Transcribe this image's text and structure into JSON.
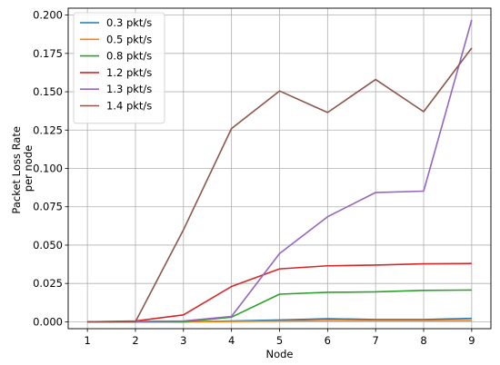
{
  "chart_data": {
    "type": "line",
    "xlabel": "Node",
    "ylabel_lines": [
      "Packet Loss Rate",
      "per node"
    ],
    "x": [
      1,
      2,
      3,
      4,
      5,
      6,
      7,
      8,
      9
    ],
    "xticks": [
      "1",
      "2",
      "3",
      "4",
      "5",
      "6",
      "7",
      "8",
      "9"
    ],
    "yticks": [
      "0.000",
      "0.025",
      "0.050",
      "0.075",
      "0.100",
      "0.125",
      "0.150",
      "0.175",
      "0.200"
    ],
    "xlim": [
      0.6,
      9.4
    ],
    "ylim": [
      -0.0045,
      0.2045
    ],
    "grid": true,
    "legend_position": "top-left",
    "series": [
      {
        "name": "0.3 pkt/s",
        "color": "#1f77b4",
        "values": [
          0,
          0,
          0,
          0.0005,
          0.0012,
          0.002,
          0.0015,
          0.0015,
          0.0022
        ]
      },
      {
        "name": "0.5 pkt/s",
        "color": "#ff7f0e",
        "values": [
          0,
          0,
          0,
          0.0002,
          0.0005,
          0.0008,
          0.0008,
          0.0008,
          0.0008
        ]
      },
      {
        "name": "0.8 pkt/s",
        "color": "#2ca02c",
        "values": [
          0,
          0,
          0,
          0.003,
          0.018,
          0.0192,
          0.0195,
          0.0205,
          0.0207
        ]
      },
      {
        "name": "1.2 pkt/s",
        "color": "#d62728",
        "values": [
          0,
          0.0005,
          0.0045,
          0.023,
          0.0345,
          0.0365,
          0.037,
          0.0378,
          0.038
        ]
      },
      {
        "name": "1.3 pkt/s",
        "color": "#9467bd",
        "values": [
          0,
          0.0002,
          0.0005,
          0.0035,
          0.0445,
          0.0685,
          0.0843,
          0.0852,
          0.1968
        ]
      },
      {
        "name": "1.4 pkt/s",
        "color": "#8c564b",
        "values": [
          0,
          0,
          0.06,
          0.126,
          0.1505,
          0.1365,
          0.158,
          0.137,
          0.1785
        ]
      }
    ]
  }
}
